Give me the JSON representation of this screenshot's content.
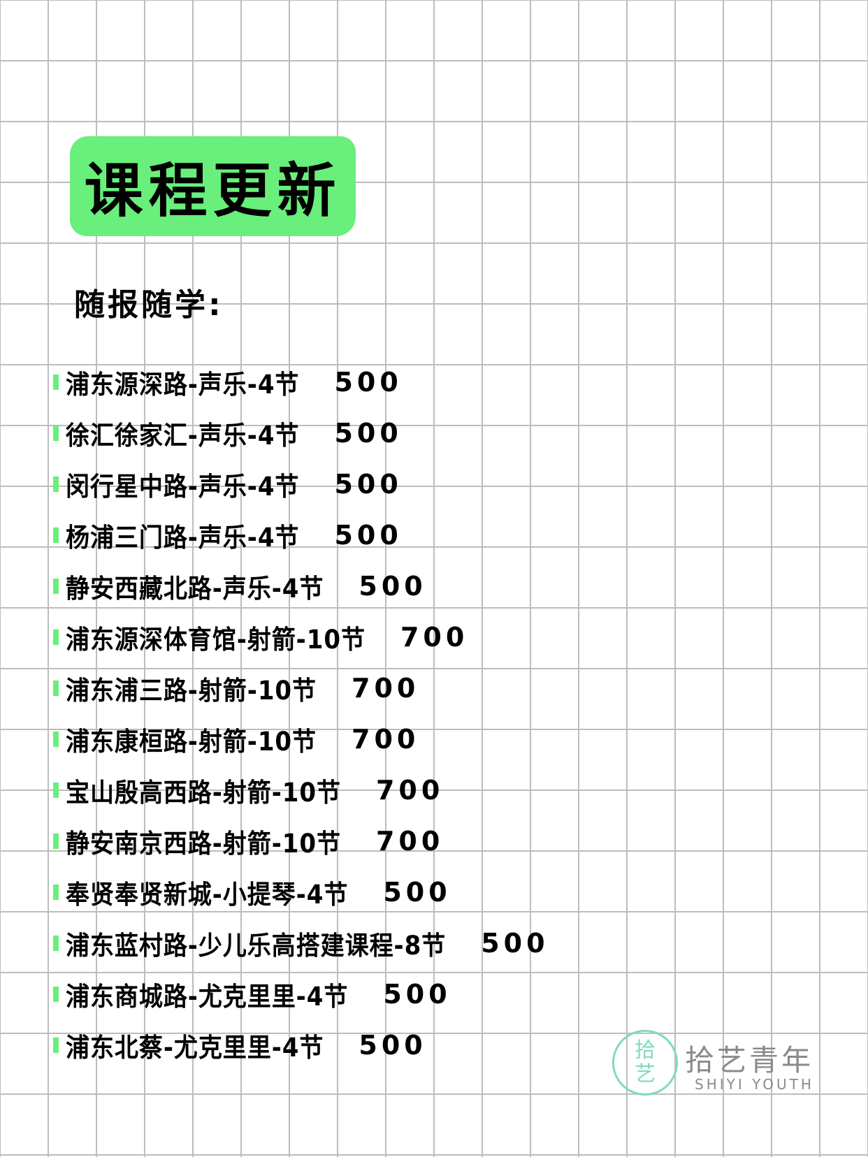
{
  "header": {
    "title": "课程更新",
    "subtitle": "随报随学:"
  },
  "colors": {
    "accent": "#69ef7b",
    "grid": "#bdbdbd",
    "logo": "#7fdcb8"
  },
  "courses": [
    {
      "name": "浦东源深路-声乐-4节",
      "price": "500"
    },
    {
      "name": "徐汇徐家汇-声乐-4节",
      "price": "500"
    },
    {
      "name": "闵行星中路-声乐-4节",
      "price": "500"
    },
    {
      "name": "杨浦三门路-声乐-4节",
      "price": "500"
    },
    {
      "name": "静安西藏北路-声乐-4节",
      "price": "500"
    },
    {
      "name": "浦东源深体育馆-射箭-10节",
      "price": "700"
    },
    {
      "name": "浦东浦三路-射箭-10节",
      "price": "700"
    },
    {
      "name": "浦东康桓路-射箭-10节",
      "price": "700"
    },
    {
      "name": "宝山殷高西路-射箭-10节",
      "price": "700"
    },
    {
      "name": "静安南京西路-射箭-10节",
      "price": "700"
    },
    {
      "name": "奉贤奉贤新城-小提琴-4节",
      "price": "500"
    },
    {
      "name": "浦东蓝村路-少儿乐高搭建课程-8节",
      "price": "500"
    },
    {
      "name": "浦东商城路-尤克里里-4节",
      "price": "500"
    },
    {
      "name": "浦东北蔡-尤克里里-4节",
      "price": "500"
    }
  ],
  "logo": {
    "mark": "拾艺",
    "name": "拾艺青年",
    "name_en": "SHIYI YOUTH"
  }
}
